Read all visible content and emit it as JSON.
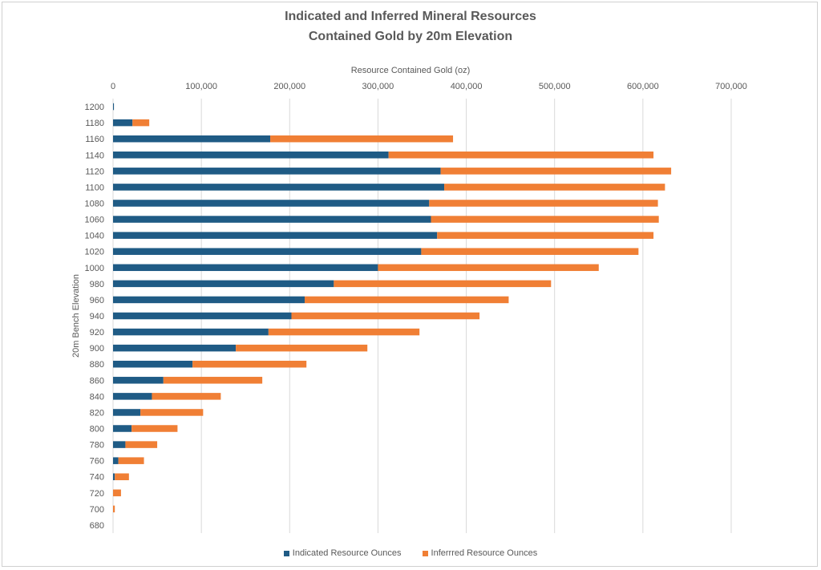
{
  "chart_data": {
    "type": "bar",
    "orientation": "horizontal",
    "stacked": true,
    "title_line1": "Indicated and Inferred Mineral Resources",
    "title_line2": "Contained  Gold by 20m Elevation",
    "xlabel": "Resource Contained Gold (oz)",
    "ylabel": "20m Bench Elevation",
    "xlim": [
      0,
      700000
    ],
    "xticks": [
      0,
      100000,
      200000,
      300000,
      400000,
      500000,
      600000,
      700000
    ],
    "xtick_labels": [
      "0",
      "100,000",
      "200,000",
      "300,000",
      "400,000",
      "500,000",
      "600,000",
      "700,000"
    ],
    "categories": [
      "1200",
      "1180",
      "1160",
      "1140",
      "1120",
      "1100",
      "1080",
      "1060",
      "1040",
      "1020",
      "1000",
      "980",
      "960",
      "940",
      "920",
      "900",
      "880",
      "860",
      "840",
      "820",
      "800",
      "780",
      "760",
      "740",
      "720",
      "700",
      "680"
    ],
    "series": [
      {
        "name": "Indicated Resource Ounces",
        "color": "#1f5b85",
        "values": [
          1000,
          22000,
          178000,
          312000,
          371000,
          375000,
          358000,
          360000,
          367000,
          349000,
          300000,
          250000,
          217000,
          202000,
          176000,
          139000,
          90000,
          57000,
          44000,
          31000,
          21000,
          14000,
          6000,
          2000,
          0,
          0,
          0
        ]
      },
      {
        "name": "Inferrred Resource Ounces",
        "color": "#f07f35",
        "values": [
          0,
          19000,
          207000,
          300000,
          261000,
          250000,
          259000,
          258000,
          245000,
          246000,
          250000,
          246000,
          231000,
          213000,
          171000,
          149000,
          129000,
          112000,
          78000,
          71000,
          52000,
          36000,
          29000,
          16000,
          9000,
          2000,
          0
        ]
      }
    ],
    "grid": "vertical",
    "legend_position": "bottom"
  }
}
